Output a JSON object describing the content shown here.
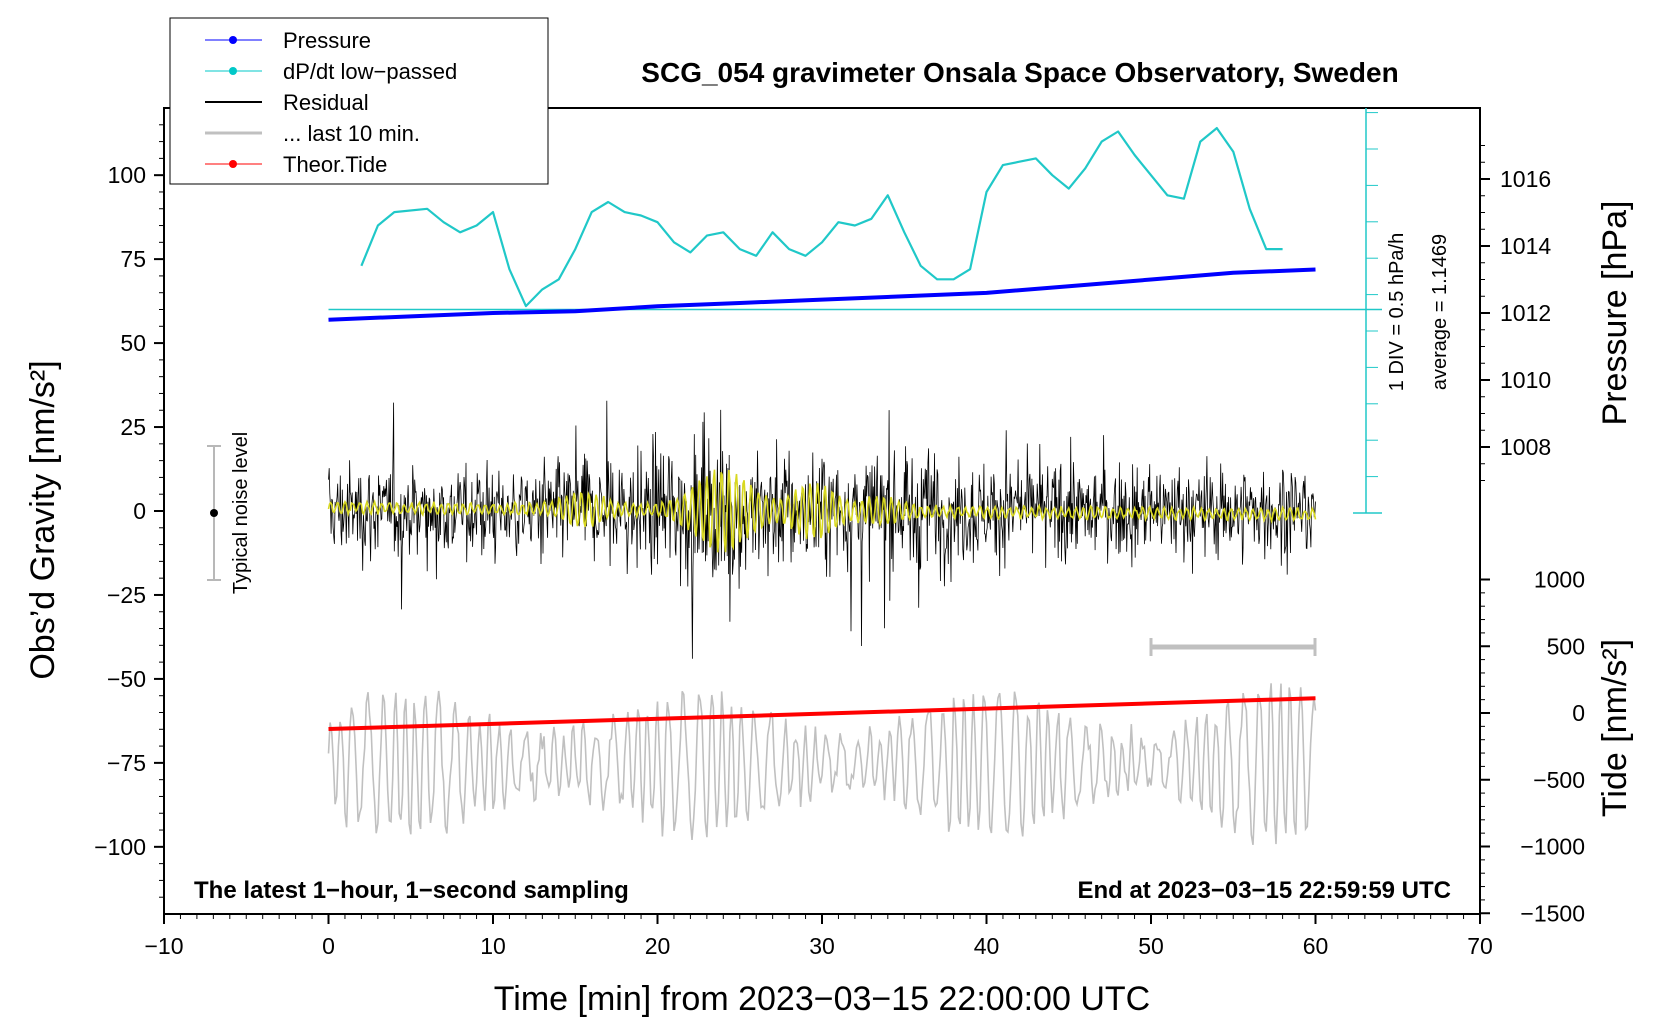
{
  "chart_data": {
    "type": "line",
    "title": "SCG_054 gravimeter Onsala Space Observatory, Sweden",
    "xlabel": "Time [min] from 2023−03−15 22:00:00 UTC",
    "ylabel_left": "Obs’d Gravity [nm/s²]",
    "ylabel_pressure": "Pressure [hPa]",
    "ylabel_tide": "Tide [nm/s²]",
    "xlim": [
      -10,
      70
    ],
    "ylim_left": [
      -120,
      120
    ],
    "x_ticks": [
      "−10",
      "0",
      "10",
      "20",
      "30",
      "40",
      "50",
      "60",
      "70"
    ],
    "y_ticks_left": [
      "100",
      "75",
      "50",
      "25",
      "0",
      "−25",
      "−50",
      "−75",
      "−100"
    ],
    "pressure_ticks": [
      "1016",
      "1014",
      "1012",
      "1010",
      "1008"
    ],
    "tide_ticks": [
      "1000",
      "500",
      "0",
      "−500",
      "−1000",
      "−1500"
    ],
    "bottom_left_text": "The latest 1−hour, 1−second sampling",
    "bottom_right_text": "End at 2023−03−15 22:59:59 UTC",
    "noise_label": "Typical noise level",
    "noise_range": [
      -20,
      20
    ],
    "ddiv_label": "1 DIV = 0.5 hPa/h",
    "average_label": "average = 1.1469",
    "last10_range_min": [
      50,
      60
    ],
    "legend": [
      {
        "name": "Pressure",
        "color": "#0000ff",
        "marker": true
      },
      {
        "name": "dP/dt low−passed",
        "color": "#00c8c8",
        "marker": true
      },
      {
        "name": "Residual",
        "color": "#000000",
        "marker": false
      },
      {
        "name": "... last 10 min.",
        "color": "#c0c0c0",
        "marker": false
      },
      {
        "name": "Theor.Tide",
        "color": "#ff0000",
        "marker": true
      }
    ],
    "colors": {
      "pressure": "#0000ff",
      "dpdt": "#20c8c8",
      "residual": "#000000",
      "last10": "#c0c0c0",
      "tide": "#ff0000",
      "smooth": "#d8d820"
    },
    "series": [
      {
        "name": "Pressure",
        "axis": "pressure_hPa",
        "x": [
          0,
          5,
          10,
          15,
          20,
          25,
          30,
          35,
          40,
          45,
          50,
          55,
          60
        ],
        "y": [
          1011.8,
          1011.9,
          1012.0,
          1012.05,
          1012.2,
          1012.3,
          1012.4,
          1012.5,
          1012.6,
          1012.8,
          1013.0,
          1013.2,
          1013.3
        ]
      },
      {
        "name": "dP/dt low−passed",
        "axis": "left_nm_s2",
        "x": [
          2,
          3,
          4,
          6,
          7,
          8,
          9,
          10,
          11,
          12,
          13,
          14,
          15,
          16,
          17,
          18,
          19,
          20,
          21,
          22,
          23,
          24,
          25,
          26,
          27,
          28,
          29,
          30,
          31,
          32,
          33,
          34,
          35,
          36,
          37,
          38,
          39,
          40,
          41,
          42,
          43,
          44,
          45,
          46,
          47,
          48,
          49,
          50,
          51,
          52,
          53,
          54,
          55,
          56,
          57,
          58
        ],
        "y": [
          73,
          85,
          89,
          90,
          86,
          83,
          85,
          89,
          72,
          61,
          66,
          69,
          78,
          89,
          92,
          89,
          88,
          86,
          80,
          77,
          82,
          83,
          78,
          76,
          83,
          78,
          76,
          80,
          86,
          85,
          87,
          94,
          83,
          73,
          69,
          69,
          72,
          95,
          103,
          104,
          105,
          100,
          96,
          102,
          110,
          113,
          106,
          100,
          94,
          93,
          110,
          114,
          107,
          90,
          78,
          78
        ]
      },
      {
        "name": "Theor.Tide",
        "axis": "tide_nm_s2",
        "x": [
          0,
          60
        ],
        "y": [
          -120,
          110
        ]
      }
    ]
  }
}
